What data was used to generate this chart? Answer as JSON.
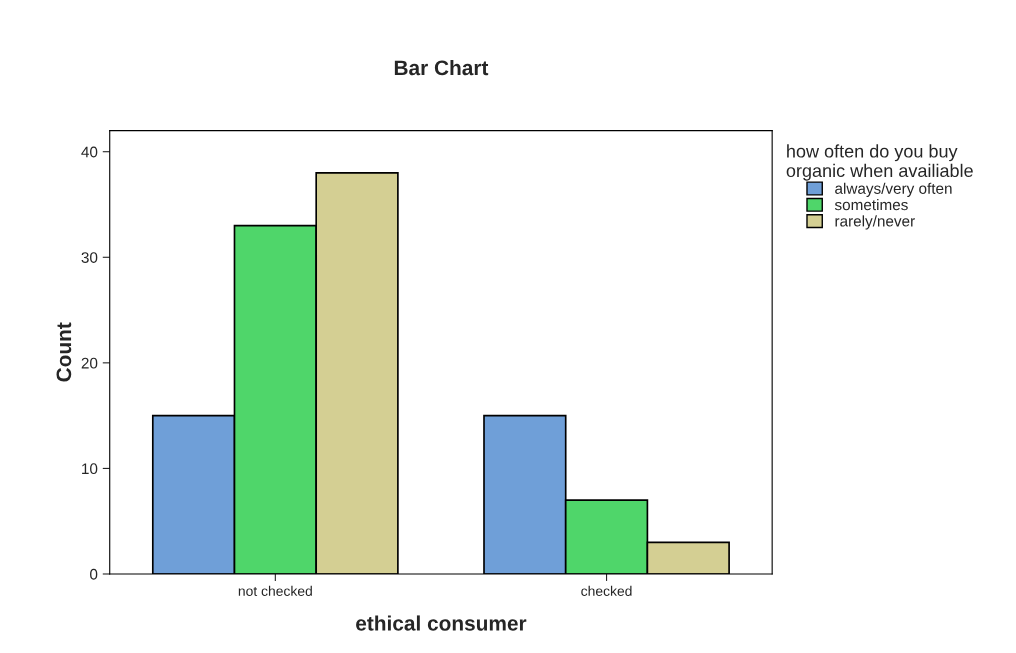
{
  "chart_data": {
    "type": "bar",
    "title": "Bar Chart",
    "xlabel": "ethical consumer",
    "ylabel": "Count",
    "legend_title": "how often do you buy\norganic when availiable",
    "categories": [
      "not checked",
      "checked"
    ],
    "series": [
      {
        "name": "always/very often",
        "color": "#6f9fd8",
        "values": [
          15,
          15
        ]
      },
      {
        "name": "sometimes",
        "color": "#4fd66a",
        "values": [
          33,
          7
        ]
      },
      {
        "name": "rarely/never",
        "color": "#d4cf93",
        "values": [
          38,
          3
        ]
      }
    ],
    "ylim": [
      0,
      42
    ],
    "yticks": [
      0,
      10,
      20,
      30,
      40
    ],
    "grid": false,
    "legend": "top right"
  }
}
